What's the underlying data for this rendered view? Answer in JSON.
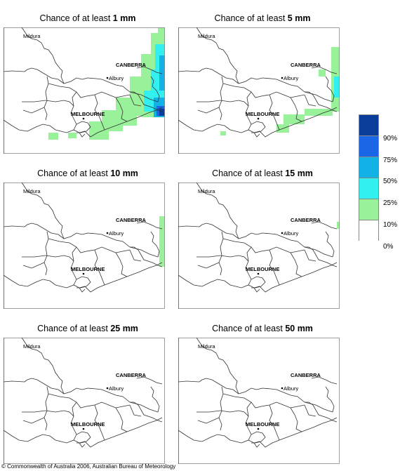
{
  "panels": [
    {
      "prefix": "Chance of at least ",
      "amount": "1 mm"
    },
    {
      "prefix": "Chance of at least ",
      "amount": "5 mm"
    },
    {
      "prefix": "Chance of at least ",
      "amount": "10 mm"
    },
    {
      "prefix": "Chance of at least ",
      "amount": "15 mm"
    },
    {
      "prefix": "Chance of at least ",
      "amount": "25 mm"
    },
    {
      "prefix": "Chance of at least ",
      "amount": "50 mm"
    }
  ],
  "places": {
    "mildura": "Mildura",
    "canberra": "CANBERRA",
    "albury": "Albury",
    "melbourne": "MELBOURNE"
  },
  "legend": {
    "labels": [
      "90%",
      "75%",
      "50%",
      "25%",
      "10%",
      "0%"
    ],
    "colors": [
      "#0a3c99",
      "#1a66e6",
      "#12b2e6",
      "#33f0f0",
      "#99f299",
      "#ffffff"
    ]
  },
  "copyright": "© Commonwealth of Australia 2006, Australian Bureau of Meteorology"
}
